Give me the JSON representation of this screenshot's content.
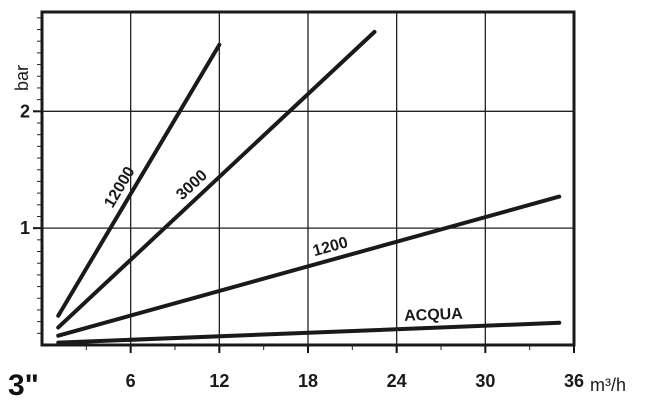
{
  "chart_data": {
    "type": "line",
    "size_label": "3\"",
    "xlabel": "m³/h",
    "ylabel": "bar",
    "xlim": [
      0,
      36
    ],
    "ylim": [
      0,
      2.85
    ],
    "x_ticks": [
      6,
      12,
      18,
      24,
      30,
      36
    ],
    "x_tick_labels": [
      "6",
      "12",
      "18",
      "24",
      "30",
      "36"
    ],
    "y_ticks": [
      1,
      2
    ],
    "y_tick_labels": [
      "1",
      "2"
    ],
    "grid": true,
    "series": [
      {
        "name": "12000",
        "x": [
          1.1,
          12.0
        ],
        "y": [
          0.25,
          2.57
        ]
      },
      {
        "name": "3000",
        "x": [
          1.1,
          22.5
        ],
        "y": [
          0.15,
          2.68
        ]
      },
      {
        "name": "1200",
        "x": [
          1.1,
          35.0
        ],
        "y": [
          0.08,
          1.27
        ]
      },
      {
        "name": "ACQUA",
        "x": [
          1.1,
          35.0
        ],
        "y": [
          0.02,
          0.19
        ]
      }
    ]
  }
}
